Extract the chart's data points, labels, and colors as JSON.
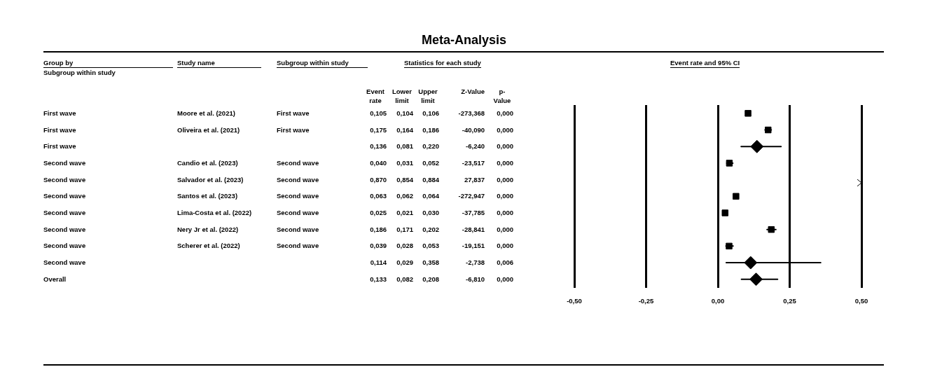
{
  "chart_data": [
    {
      "type": "other",
      "title": "Meta-Analysis",
      "categories": [
        "Group by",
        "Study name",
        "Subgroup within study",
        "Event rate",
        "Lower limit",
        "Upper limit",
        "Z-Value",
        "p-Value"
      ],
      "annotations": [
        "Subgroup within study",
        "Statistics for each study"
      ],
      "cell_labels": [
        [
          "First wave",
          "Moore et al. (2021)",
          "First wave",
          "0,105",
          "0,104",
          "0,106",
          "-273,368",
          "0,000"
        ],
        [
          "First wave",
          "Oliveira et al. (2021)",
          "First wave",
          "0,175",
          "0,164",
          "0,186",
          "-40,090",
          "0,000"
        ],
        [
          "First wave",
          null,
          null,
          "0,136",
          "0,081",
          "0,220",
          "-6,240",
          "0,000"
        ],
        [
          "Second wave",
          "Candio et al. (2023)",
          "Second wave",
          "0,040",
          "0,031",
          "0,052",
          "-23,517",
          "0,000"
        ],
        [
          "Second wave",
          "Salvador et al. (2023)",
          "Second wave",
          "0,870",
          "0,854",
          "0,884",
          "27,837",
          "0,000"
        ],
        [
          "Second wave",
          "Santos et al. (2023)",
          "Second wave",
          "0,063",
          "0,062",
          "0,064",
          "-272,947",
          "0,000"
        ],
        [
          "Second wave",
          "Lima-Costa et al. (2022)",
          "Second wave",
          "0,025",
          "0,021",
          "0,030",
          "-37,785",
          "0,000"
        ],
        [
          "Second wave",
          "Nery Jr et al. (2022)",
          "Second wave",
          "0,186",
          "0,171",
          "0,202",
          "-28,841",
          "0,000"
        ],
        [
          "Second wave",
          "Scherer et al. (2022)",
          "Second wave",
          "0,039",
          "0,028",
          "0,053",
          "-19,151",
          "0,000"
        ],
        [
          "Second wave",
          null,
          null,
          "0,114",
          "0,029",
          "0,358",
          "-2,738",
          "0,006"
        ],
        [
          "Overall",
          null,
          null,
          "0,133",
          "0,082",
          "0,208",
          "-6,810",
          "0,000"
        ]
      ]
    },
    {
      "type": "scatter",
      "xlabel": "Event rate and 95% CI",
      "orientation": "horizontal",
      "categories": [
        null,
        null,
        null,
        null,
        null,
        null,
        null,
        null,
        null,
        null,
        null
      ],
      "xlim": [
        -0.5,
        0.5
      ],
      "xticks": [
        {
          "value": -0.5,
          "label": "-0,50"
        },
        {
          "value": -0.25,
          "label": "-0,25"
        },
        {
          "value": 0,
          "label": "0,00"
        },
        {
          "value": 0.25,
          "label": "0,25"
        },
        {
          "value": 0.5,
          "label": "0,50"
        }
      ],
      "grid": "x",
      "series": [
        {
          "color": "#000000",
          "marker": "square",
          "values": [
            0.105,
            0.175,
            null,
            0.04,
            null,
            0.063,
            0.025,
            0.186,
            0.039,
            null,
            null
          ],
          "errors": [
            null,
            [
              0.164,
              0.186
            ],
            null,
            [
              0.031,
              0.052
            ],
            null,
            null,
            [
              0.021,
              0.03
            ],
            [
              0.171,
              0.202
            ],
            [
              0.028,
              0.053
            ],
            null,
            null
          ]
        },
        {
          "color": "#000000",
          "marker": "diamond",
          "values": [
            null,
            null,
            0.136,
            null,
            null,
            null,
            null,
            null,
            null,
            0.114,
            0.133
          ],
          "errors": [
            null,
            null,
            [
              0.081,
              0.22
            ],
            null,
            null,
            null,
            null,
            null,
            null,
            [
              0.029,
              0.358
            ],
            [
              0.082,
              0.208
            ]
          ]
        }
      ]
    }
  ]
}
